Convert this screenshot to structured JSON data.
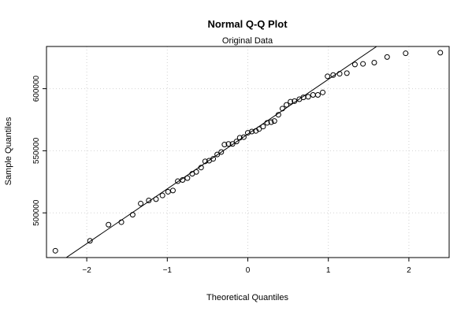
{
  "chart_data": {
    "type": "scatter",
    "title": "Normal Q-Q Plot",
    "subtitle": "Original Data",
    "xlabel": "Theoretical Quantiles",
    "ylabel": "Sample Quantiles",
    "xlim": [
      -2.5,
      2.5
    ],
    "ylim": [
      464000,
      634000
    ],
    "x_ticks": [
      -2,
      -1,
      0,
      1,
      2
    ],
    "x_tick_labels": [
      "−2",
      "−1",
      "0",
      "1",
      "2"
    ],
    "y_ticks": [
      500000,
      550000,
      600000
    ],
    "y_tick_labels": [
      "500000",
      "550000",
      "600000"
    ],
    "grid": true,
    "reference_line": {
      "from": [
        -2.3,
        462000
      ],
      "to": [
        1.6,
        634000
      ]
    },
    "points": [
      [
        -2.39,
        469500
      ],
      [
        -1.96,
        477500
      ],
      [
        -1.73,
        490500
      ],
      [
        -1.57,
        492500
      ],
      [
        -1.43,
        498500
      ],
      [
        -1.33,
        507500
      ],
      [
        -1.23,
        510000
      ],
      [
        -1.14,
        511000
      ],
      [
        -1.06,
        514000
      ],
      [
        -0.99,
        517000
      ],
      [
        -0.93,
        518000
      ],
      [
        -0.87,
        525500
      ],
      [
        -0.81,
        526500
      ],
      [
        -0.75,
        528000
      ],
      [
        -0.69,
        531500
      ],
      [
        -0.64,
        533000
      ],
      [
        -0.58,
        536500
      ],
      [
        -0.53,
        541500
      ],
      [
        -0.48,
        542000
      ],
      [
        -0.43,
        543500
      ],
      [
        -0.38,
        547000
      ],
      [
        -0.33,
        549000
      ],
      [
        -0.29,
        555000
      ],
      [
        -0.24,
        555500
      ],
      [
        -0.19,
        555500
      ],
      [
        -0.14,
        557500
      ],
      [
        -0.1,
        560500
      ],
      [
        -0.05,
        561000
      ],
      [
        0.0,
        564500
      ],
      [
        0.05,
        565500
      ],
      [
        0.1,
        566000
      ],
      [
        0.14,
        567500
      ],
      [
        0.19,
        569500
      ],
      [
        0.24,
        572500
      ],
      [
        0.29,
        573000
      ],
      [
        0.33,
        574000
      ],
      [
        0.38,
        579000
      ],
      [
        0.43,
        584000
      ],
      [
        0.48,
        587000
      ],
      [
        0.53,
        589500
      ],
      [
        0.58,
        590000
      ],
      [
        0.64,
        591500
      ],
      [
        0.69,
        593000
      ],
      [
        0.75,
        593500
      ],
      [
        0.81,
        595000
      ],
      [
        0.87,
        595000
      ],
      [
        0.93,
        597000
      ],
      [
        0.99,
        610000
      ],
      [
        1.06,
        611000
      ],
      [
        1.14,
        612000
      ],
      [
        1.23,
        612500
      ],
      [
        1.33,
        619500
      ],
      [
        1.43,
        620000
      ],
      [
        1.57,
        621000
      ],
      [
        1.73,
        625500
      ],
      [
        1.96,
        628500
      ],
      [
        2.39,
        629000
      ]
    ]
  }
}
